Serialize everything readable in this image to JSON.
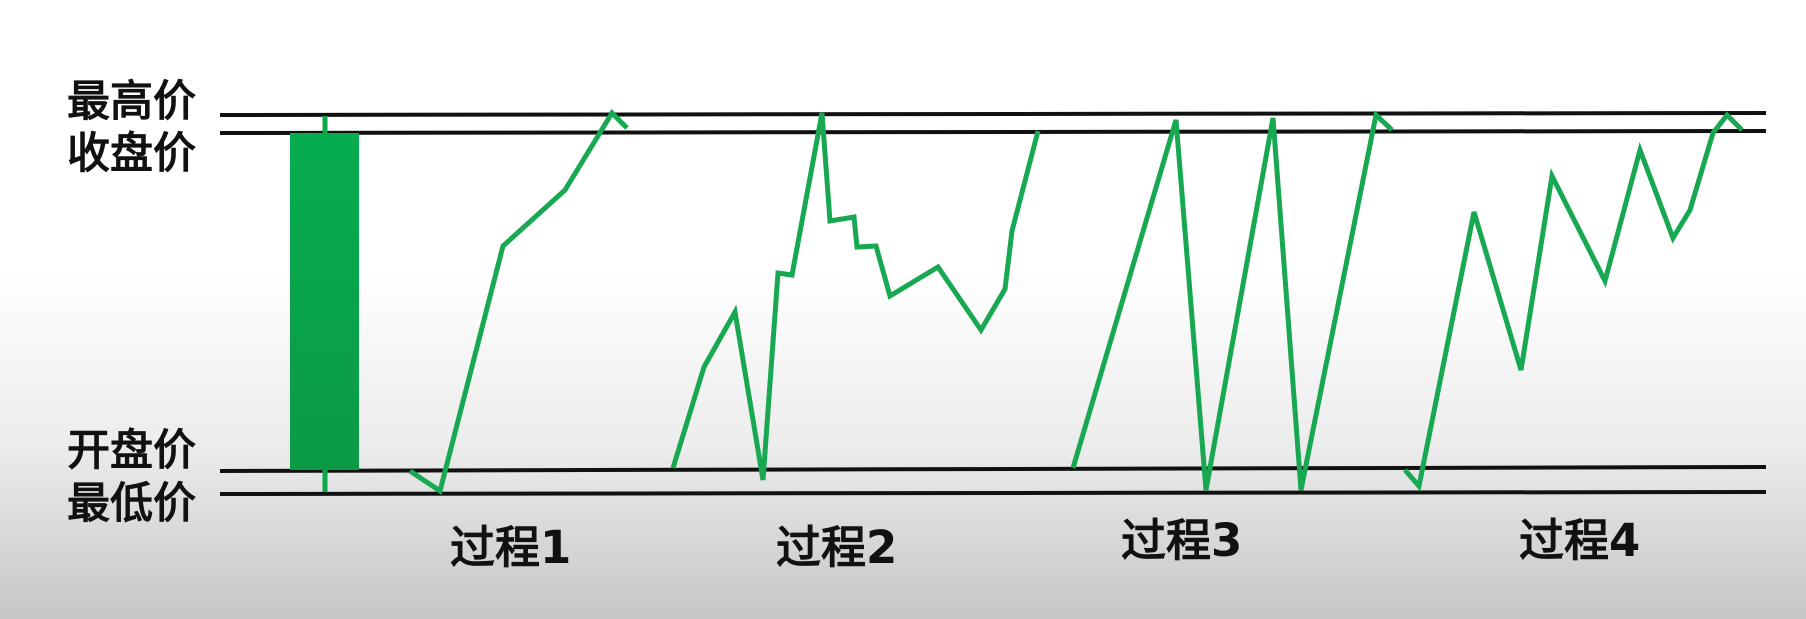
{
  "price_labels": {
    "high": "最高价",
    "close": "收盘价",
    "open": "开盘价",
    "low": "最低价"
  },
  "process_labels": [
    "过程1",
    "过程2",
    "过程3",
    "过程4"
  ],
  "colors": {
    "candle": "#0aaa4b",
    "path": "#17a851",
    "lines": "#111111"
  }
}
